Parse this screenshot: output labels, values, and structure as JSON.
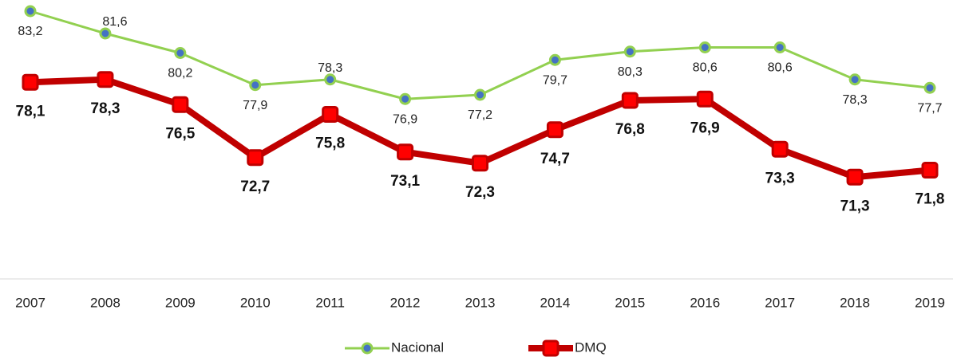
{
  "chart_data": {
    "type": "line",
    "categories": [
      "2007",
      "2008",
      "2009",
      "2010",
      "2011",
      "2012",
      "2013",
      "2014",
      "2015",
      "2016",
      "2017",
      "2018",
      "2019"
    ],
    "series": [
      {
        "name": "Nacional",
        "color": "#92d050",
        "marker_color": "#4472c4",
        "values": [
          83.2,
          81.6,
          80.2,
          77.9,
          78.3,
          76.9,
          77.2,
          79.7,
          80.3,
          80.6,
          80.6,
          78.3,
          77.7
        ],
        "value_labels": [
          "83,2",
          "81,6",
          "80,2",
          "77,9",
          "78,3",
          "76,9",
          "77,2",
          "79,7",
          "80,3",
          "80,6",
          "80,6",
          "78,3",
          "77,7"
        ]
      },
      {
        "name": "DMQ",
        "color": "#c00000",
        "marker_color": "#ff0000",
        "values": [
          78.1,
          78.3,
          76.5,
          72.7,
          75.8,
          73.1,
          72.3,
          74.7,
          76.8,
          76.9,
          73.3,
          71.3,
          71.8
        ],
        "value_labels": [
          "78,1",
          "78,3",
          "76,5",
          "72,7",
          "75,8",
          "73,1",
          "72,3",
          "74,7",
          "76,8",
          "76,9",
          "73,3",
          "71,3",
          "71,8"
        ]
      }
    ],
    "ylim": [
      64,
      84
    ],
    "grid": false,
    "legend": "bottom"
  }
}
